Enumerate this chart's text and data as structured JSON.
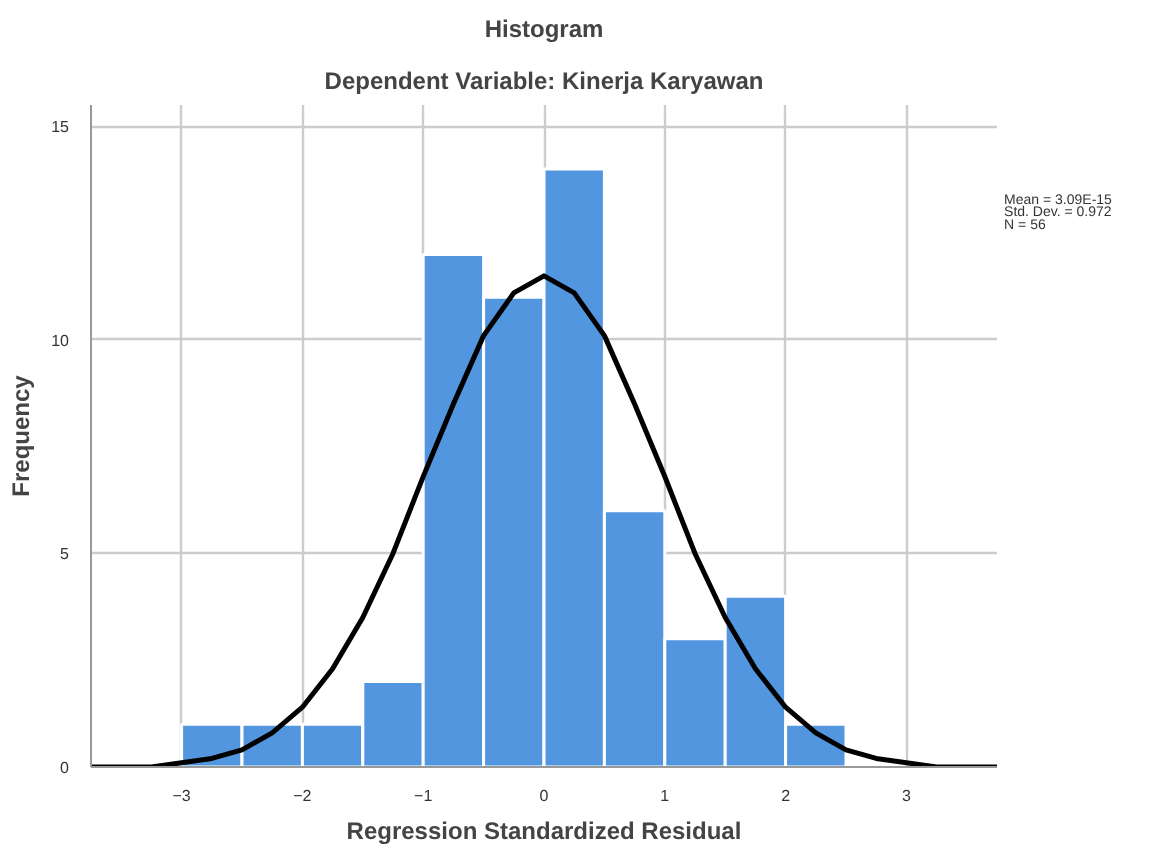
{
  "chart_data": {
    "type": "histogram",
    "title": "Histogram",
    "subtitle": "Dependent Variable: Kinerja Karyawan",
    "xlabel": "Regression Standardized Residual",
    "ylabel": "Frequency",
    "bins": [
      -3,
      -2.5,
      -2,
      -1.5,
      -1,
      -0.5,
      0,
      0.5,
      1,
      1.5,
      2,
      2.5
    ],
    "values": [
      1,
      1,
      1,
      2,
      12,
      11,
      14,
      6,
      3,
      4,
      1
    ],
    "color": "#5296e0",
    "series": [
      {
        "type": "line",
        "color": "#000000",
        "x": [
          -3.75,
          -3.5,
          -3.25,
          -3,
          -2.75,
          -2.5,
          -2.25,
          -2,
          -1.75,
          -1.5,
          -1.25,
          -1,
          -0.75,
          -0.5,
          -0.25,
          0,
          0.25,
          0.5,
          0.75,
          1,
          1.25,
          1.5,
          1.75,
          2,
          2.25,
          2.5,
          2.75,
          3,
          3.25,
          3.5,
          3.75
        ],
        "values": [
          0,
          0,
          0,
          0.1,
          0.2,
          0.4,
          0.8,
          1.4,
          2.3,
          3.5,
          5,
          6.8,
          8.5,
          10.1,
          11.1,
          11.5,
          11.1,
          10.1,
          8.5,
          6.8,
          5,
          3.5,
          2.3,
          1.4,
          0.8,
          0.4,
          0.2,
          0.1,
          0,
          0,
          0
        ]
      }
    ],
    "xlim": [
      -3.75,
      3.75
    ],
    "xticks": [
      -3,
      -2,
      -1,
      0,
      1,
      2,
      3
    ],
    "ylim": [
      0,
      15.5
    ],
    "yticks": [
      0,
      5,
      10,
      15
    ],
    "grid": true,
    "annotations": [
      "Mean = 3.09E-15",
      "Std. Dev. = 0.972",
      "N = 56"
    ]
  }
}
